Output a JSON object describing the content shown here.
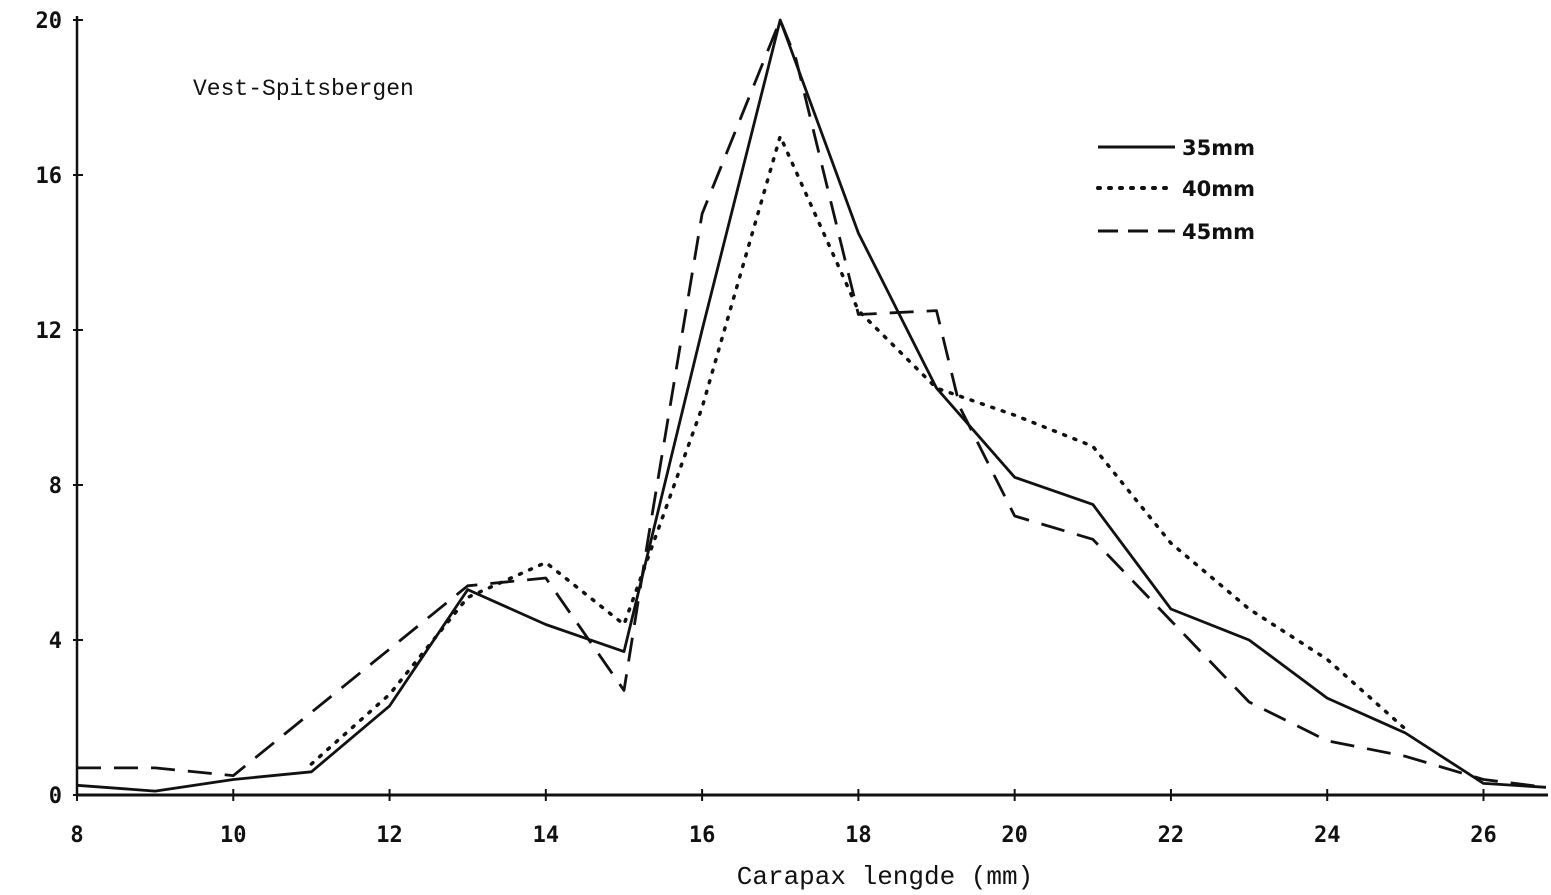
{
  "chart_data": {
    "type": "line",
    "annotation": "Vest-Spitsbergen",
    "xlabel": "Carapax lengde (mm)",
    "ylabel": "",
    "xlim": [
      8,
      26.8
    ],
    "ylim": [
      0,
      20
    ],
    "x_ticks": [
      8,
      10,
      12,
      14,
      16,
      18,
      20,
      22,
      24,
      26
    ],
    "x_tick_labels": [
      "8",
      "10",
      "12",
      "14",
      "16",
      "18",
      "20",
      "22",
      "24",
      "26"
    ],
    "y_ticks": [
      0,
      4,
      8,
      12,
      16,
      20
    ],
    "y_tick_labels": [
      "0",
      "4",
      "8",
      "12",
      "16",
      "20"
    ],
    "legend_position": "top-right",
    "series": [
      {
        "name": "35mm",
        "style": "solid",
        "x": [
          8,
          9,
          10,
          11,
          12,
          13,
          14,
          15,
          16,
          17,
          18,
          19,
          20,
          21,
          22,
          23,
          24,
          25,
          26,
          26.8
        ],
        "y": [
          0.25,
          0.1,
          0.4,
          0.6,
          2.3,
          5.3,
          4.4,
          3.7,
          12.0,
          20.0,
          14.5,
          10.5,
          8.2,
          7.5,
          4.8,
          4.0,
          2.5,
          1.6,
          0.3,
          0.2
        ]
      },
      {
        "name": "40mm",
        "style": "dotted",
        "x": [
          11,
          12,
          13,
          14,
          15,
          16,
          17,
          18,
          19,
          20,
          21,
          22,
          23,
          24,
          25
        ],
        "y": [
          0.8,
          2.6,
          5.1,
          6.0,
          4.4,
          10.0,
          17.0,
          12.5,
          10.5,
          9.8,
          9.0,
          6.5,
          4.8,
          3.5,
          1.7
        ]
      },
      {
        "name": "45mm",
        "style": "dashed",
        "x": [
          8,
          9,
          10,
          13,
          14,
          15,
          15.3,
          16,
          17,
          17.2,
          18,
          19,
          19.3,
          20,
          21,
          22,
          23,
          24,
          25,
          26,
          26.8
        ],
        "y": [
          0.7,
          0.7,
          0.5,
          5.4,
          5.6,
          2.7,
          6.5,
          15.0,
          20.0,
          19.0,
          12.4,
          12.5,
          10.0,
          7.2,
          6.6,
          4.5,
          2.4,
          1.4,
          1.0,
          0.4,
          0.2
        ]
      }
    ]
  }
}
